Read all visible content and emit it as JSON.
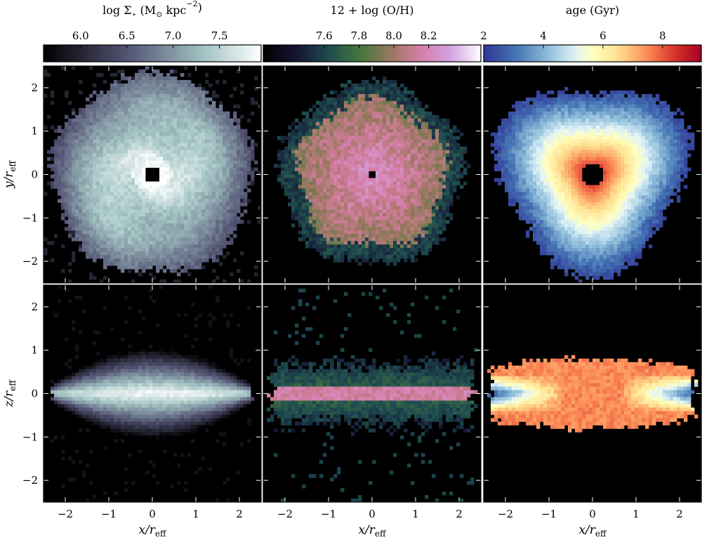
{
  "chart_data": {
    "type": "heatmap",
    "colorbars": [
      {
        "title": "log Σ⋆ (M⊙ kpc⁻²)",
        "title_parts": [
          "log Σ",
          "⋆",
          " (M",
          "⊙",
          " kpc",
          "−2",
          ")"
        ],
        "range": [
          5.6,
          7.95
        ],
        "ticks": [
          6.0,
          6.5,
          7.0,
          7.5
        ],
        "tick_labels": [
          "6.0",
          "6.5",
          "7.0",
          "7.5"
        ],
        "colormap": "bone"
      },
      {
        "title": "12 + log (O/H)",
        "title_parts": [
          "12 + log (O/H)"
        ],
        "range": [
          7.25,
          8.5
        ],
        "ticks": [
          7.6,
          7.8,
          8.0,
          8.2
        ],
        "tick_labels": [
          "7.6",
          "7.8",
          "8.0",
          "8.2"
        ],
        "colormap": "cubehelix"
      },
      {
        "title": "age (Gyr)",
        "title_parts": [
          "age (Gyr)"
        ],
        "range": [
          2,
          9.3
        ],
        "ticks": [
          2,
          4,
          6,
          8
        ],
        "tick_labels": [
          "2",
          "4",
          "6",
          "8"
        ],
        "colormap": "RdYlBu_r"
      }
    ],
    "xlim": [
      -2.5,
      2.5
    ],
    "ylim": [
      -2.5,
      2.5
    ],
    "xticks": [
      -2,
      -1,
      0,
      1,
      2
    ],
    "yticks": [
      -2,
      -1,
      0,
      1,
      2
    ],
    "tick_labels": [
      "−2",
      "−1",
      "0",
      "1",
      "2"
    ],
    "xlabel_parts": [
      "x",
      "/r",
      "eff"
    ],
    "row_ylabel_parts": [
      [
        "y",
        "/r",
        "eff"
      ],
      [
        "z",
        "/r",
        "eff"
      ]
    ],
    "rows": [
      {
        "view": "face-on",
        "panels": [
          {
            "quantity": "stellar surface density",
            "structure": "spiral disk",
            "edge_radius": 2.3,
            "center_hole_radius": 0.2,
            "center_value": 7.9,
            "edge_value": 6.2
          },
          {
            "quantity": "gas metallicity",
            "structure": "disk",
            "edge_radius": 2.1,
            "center_hole_radius": 0.12,
            "center_value": 8.25,
            "edge_value": 7.6
          },
          {
            "quantity": "stellar age",
            "structure": "disk",
            "edge_radius": 2.15,
            "center_hole_radius": 0.25,
            "center_value": 9.2,
            "edge_value": 2.3
          }
        ]
      },
      {
        "view": "edge-on",
        "panels": [
          {
            "quantity": "stellar surface density",
            "structure": "thin disk",
            "half_length": 2.3,
            "half_thickness": 0.5,
            "center_value": 7.9,
            "edge_value": 6.0
          },
          {
            "quantity": "gas metallicity",
            "structure": "thin disk",
            "half_length": 2.3,
            "half_thickness": 0.6,
            "center_value": 8.2,
            "edge_value": 7.5
          },
          {
            "quantity": "stellar age",
            "structure": "bow-tie disk",
            "half_length": 2.3,
            "half_thickness": 0.8,
            "center_value": 7.5,
            "edge_value": 2.3
          }
        ]
      }
    ]
  }
}
